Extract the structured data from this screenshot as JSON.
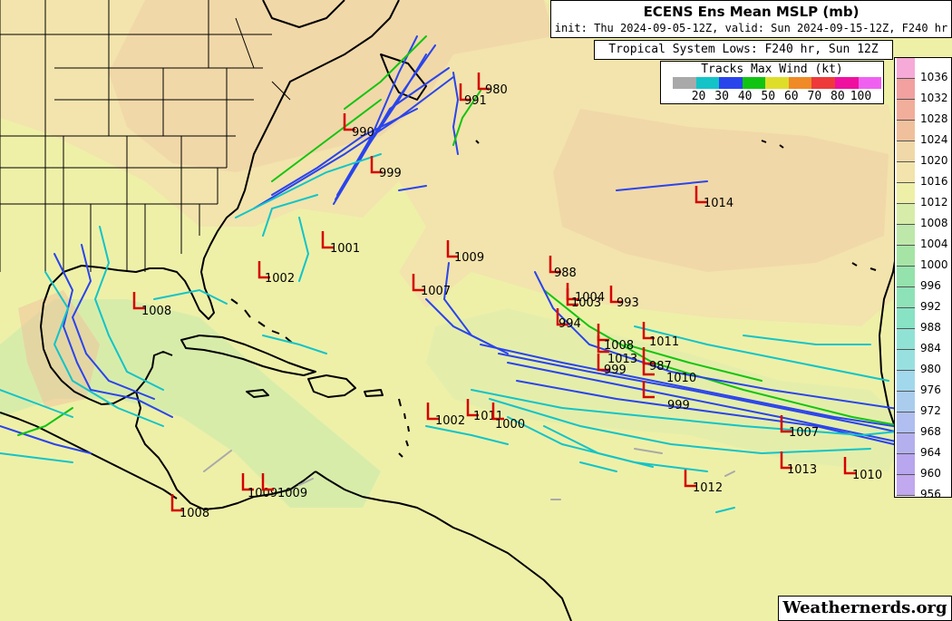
{
  "title": "ECENS Ens Mean MSLP (mb)",
  "subtitle": "init: Thu 2024-09-05-12Z, valid: Sun 2024-09-15-12Z, F240 hr",
  "lows_title": "Tropical System Lows: F240 hr, Sun 12Z",
  "legend": {
    "title": "Tracks Max Wind (kt)",
    "bins": [
      {
        "label": "20",
        "color": "#a9a9a9"
      },
      {
        "label": "30",
        "color": "#12c4c8"
      },
      {
        "label": "40",
        "color": "#2a44ec"
      },
      {
        "label": "50",
        "color": "#12c412"
      },
      {
        "label": "60",
        "color": "#dede2a"
      },
      {
        "label": "70",
        "color": "#f08a26"
      },
      {
        "label": "80",
        "color": "#ee3a3a"
      },
      {
        "label": "100",
        "color": "#ef10a0"
      },
      {
        "label": "",
        "color": "#f060f0"
      }
    ]
  },
  "colorbar": {
    "levels": [
      {
        "label": "1036",
        "color": "#f6aad8"
      },
      {
        "label": "1032",
        "color": "#f2a0a0"
      },
      {
        "label": "1028",
        "color": "#f1ae9a"
      },
      {
        "label": "1024",
        "color": "#f0c09c"
      },
      {
        "label": "1020",
        "color": "#f1d8a8"
      },
      {
        "label": "1016",
        "color": "#f2e4ac"
      },
      {
        "label": "1012",
        "color": "#eef0a8"
      },
      {
        "label": "1008",
        "color": "#d8ecaa"
      },
      {
        "label": "1004",
        "color": "#bde8aa"
      },
      {
        "label": "1000",
        "color": "#a6e4a6"
      },
      {
        "label": "996",
        "color": "#94e2ac"
      },
      {
        "label": "992",
        "color": "#8ee2b8"
      },
      {
        "label": "988",
        "color": "#88e2c4"
      },
      {
        "label": "984",
        "color": "#90e2d4"
      },
      {
        "label": "980",
        "color": "#98e0e0"
      },
      {
        "label": "976",
        "color": "#a2d8ec"
      },
      {
        "label": "972",
        "color": "#aacdee"
      },
      {
        "label": "968",
        "color": "#b0bff0"
      },
      {
        "label": "964",
        "color": "#b4b0ee"
      },
      {
        "label": "960",
        "color": "#b8a6ee"
      },
      {
        "label": "956",
        "color": "#c2a8ee"
      }
    ]
  },
  "lows": [
    {
      "label": "980"
    },
    {
      "label": "991"
    },
    {
      "label": "990"
    },
    {
      "label": "999"
    },
    {
      "label": "1014"
    },
    {
      "label": "1001"
    },
    {
      "label": "1009"
    },
    {
      "label": "1002"
    },
    {
      "label": "1007"
    },
    {
      "label": "1008"
    },
    {
      "label": "988"
    },
    {
      "label": "1004"
    },
    {
      "label": "1003"
    },
    {
      "label": "993"
    },
    {
      "label": "994"
    },
    {
      "label": "1011"
    },
    {
      "label": "1008"
    },
    {
      "label": "1013"
    },
    {
      "label": "987"
    },
    {
      "label": "999"
    },
    {
      "label": "1010"
    },
    {
      "label": "999"
    },
    {
      "label": "1002"
    },
    {
      "label": "1011"
    },
    {
      "label": "1000"
    },
    {
      "label": "1007"
    },
    {
      "label": "1013"
    },
    {
      "label": "1012"
    },
    {
      "label": "1010"
    },
    {
      "label": "1009"
    },
    {
      "label": "1009"
    },
    {
      "label": "1008"
    }
  ],
  "credit": "Weathernerds.org"
}
